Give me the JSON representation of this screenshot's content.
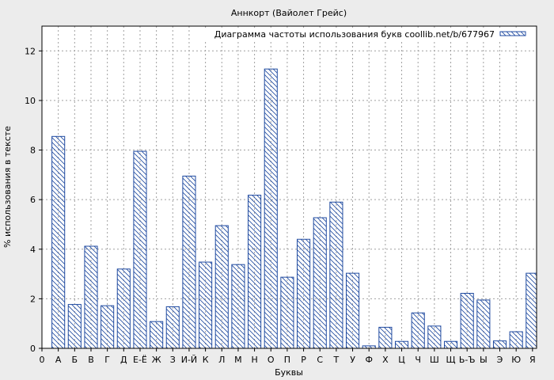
{
  "chart_data": {
    "type": "bar",
    "title": "Аннкорт (Вайолет Грейс)",
    "xlabel": "Буквы",
    "ylabel": "% использования в тексте",
    "legend": "Диаграмма частоты использования букв coollib.net/b/677967",
    "legend_position": "top-right",
    "grid": true,
    "ylim": [
      0,
      13
    ],
    "yticks": [
      0,
      2,
      4,
      6,
      8,
      10,
      12
    ],
    "x_origin_label": "0",
    "categories": [
      "А",
      "Б",
      "В",
      "Г",
      "Д",
      "Е-Ё",
      "Ж",
      "З",
      "И-Й",
      "К",
      "Л",
      "М",
      "Н",
      "О",
      "П",
      "Р",
      "С",
      "Т",
      "У",
      "Ф",
      "Х",
      "Ц",
      "Ч",
      "Ш",
      "Щ",
      "Ь-Ъ",
      "Ы",
      "Э",
      "Ю",
      "Я"
    ],
    "values": [
      8.55,
      1.77,
      4.12,
      1.72,
      3.2,
      7.95,
      1.08,
      1.68,
      6.95,
      3.48,
      4.95,
      3.38,
      6.18,
      11.27,
      2.87,
      4.4,
      5.27,
      5.9,
      3.03,
      0.1,
      0.85,
      0.28,
      1.43,
      0.9,
      0.28,
      2.22,
      1.95,
      0.3,
      0.67,
      3.03
    ],
    "colors": {
      "bar_stroke": "#1f4aa0",
      "hatch": "#1f4aa0",
      "plot_bg": "#ffffff",
      "page_bg": "#ececec",
      "grid": "#a0a0a0"
    }
  }
}
